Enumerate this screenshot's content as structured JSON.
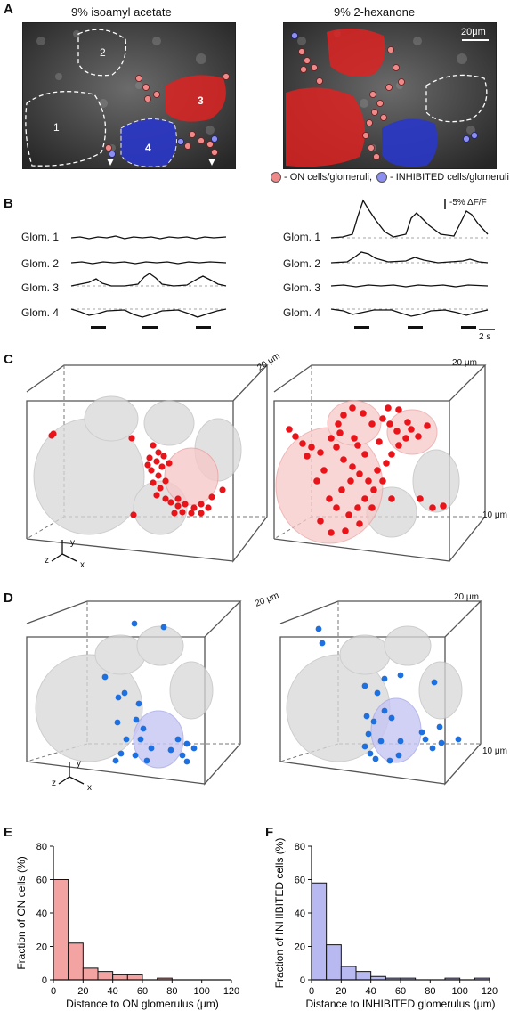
{
  "panel_a": {
    "letter": "A",
    "left_title": "9% isoamyl acetate",
    "right_title": "9% 2-hexanone",
    "glom_labels": [
      "1",
      "2",
      "3",
      "4"
    ],
    "scale_bar": "20μm",
    "legend_on": "- ON cells/glomeruli,",
    "legend_inhibited": "- INHIBITED cells/glomeruli",
    "colors": {
      "on": "#e53935",
      "inhibited": "#2637c8",
      "on_cell": "#ef8a8a",
      "inh_cell": "#8c8ff0"
    }
  },
  "panel_b": {
    "letter": "B",
    "rows": [
      "Glom. 1",
      "Glom. 2",
      "Glom. 3",
      "Glom. 4"
    ],
    "scale_y": "-5% ΔF/F",
    "scale_x": "2 s"
  },
  "panel_c": {
    "letter": "C",
    "scale_20a": "20 μm",
    "scale_20b": "20 μm",
    "scale_10": "10 μm",
    "axes": [
      "y",
      "z",
      "x"
    ],
    "dot_color": "#e8141a"
  },
  "panel_d": {
    "letter": "D",
    "scale_20a": "20 μm",
    "scale_20b": "20 μm",
    "scale_10": "10 μm",
    "axes": [
      "y",
      "z",
      "x"
    ],
    "dot_color": "#1e6fe0"
  },
  "chart_data": [
    {
      "id": "E",
      "type": "bar",
      "letter": "E",
      "xlabel": "Distance to ON glomerulus (μm)",
      "ylabel": "Fraction of ON cells (%)",
      "bin_edges": [
        0,
        10,
        20,
        30,
        40,
        50,
        60,
        70,
        80,
        90,
        100,
        110,
        120
      ],
      "values": [
        60,
        22,
        7,
        5,
        3,
        3,
        0,
        1,
        0,
        0,
        0,
        0
      ],
      "xlim": [
        0,
        120
      ],
      "ylim": [
        0,
        80
      ],
      "xticks": [
        "0",
        "20",
        "40",
        "60",
        "80",
        "100",
        "120"
      ],
      "yticks": [
        "0",
        "20",
        "40",
        "60",
        "80"
      ],
      "color": "#f4a3a3"
    },
    {
      "id": "F",
      "type": "bar",
      "letter": "F",
      "xlabel": "Distance to INHIBITED glomerulus (μm)",
      "ylabel": "Fraction of INHIBITED cells (%)",
      "bin_edges": [
        0,
        10,
        20,
        30,
        40,
        50,
        60,
        70,
        80,
        90,
        100,
        110,
        120
      ],
      "values": [
        58,
        21,
        8,
        5,
        2,
        1,
        1,
        0,
        0,
        1,
        0,
        1
      ],
      "xlim": [
        0,
        120
      ],
      "ylim": [
        0,
        80
      ],
      "xticks": [
        "0",
        "20",
        "40",
        "60",
        "80",
        "100",
        "120"
      ],
      "yticks": [
        "0",
        "20",
        "40",
        "60",
        "80"
      ],
      "color": "#b9b9f2"
    }
  ]
}
